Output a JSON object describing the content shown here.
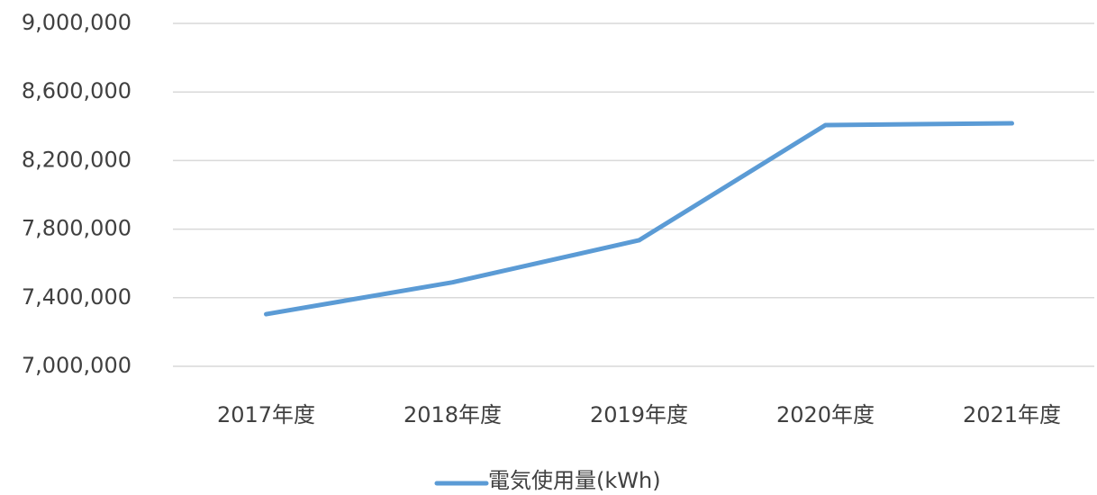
{
  "chart_data": {
    "type": "line",
    "categories": [
      "2017年度",
      "2018年度",
      "2019年度",
      "2020年度",
      "2021年度"
    ],
    "series": [
      {
        "name": "電気使用量(kWh)",
        "color": "#5b9bd5",
        "values": [
          7304000,
          7490000,
          7735000,
          8407000,
          8417000
        ]
      }
    ],
    "ylim": [
      7000000,
      9000000
    ],
    "yticks": [
      {
        "value": 7000000,
        "label": "7,000,000"
      },
      {
        "value": 7400000,
        "label": "7,400,000"
      },
      {
        "value": 7800000,
        "label": "7,800,000"
      },
      {
        "value": 8200000,
        "label": "8,200,000"
      },
      {
        "value": 8600000,
        "label": "8,600,000"
      },
      {
        "value": 9000000,
        "label": "9,000,000"
      }
    ],
    "grid": true,
    "legend": "bottom"
  }
}
